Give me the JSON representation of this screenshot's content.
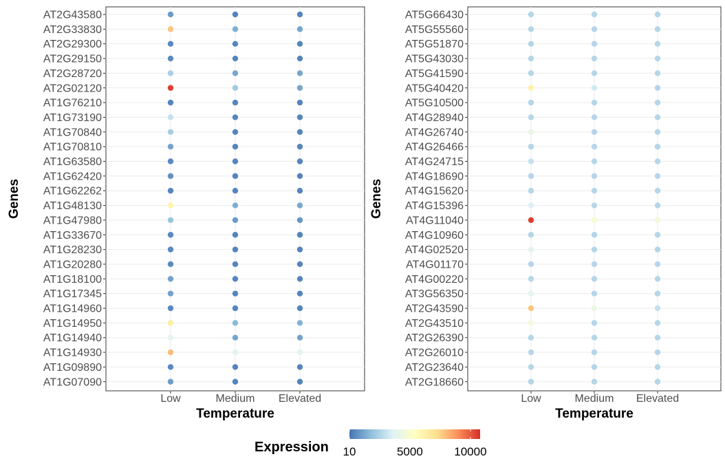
{
  "chart_data": [
    {
      "type": "scatter",
      "xlabel": "Temperature",
      "ylabel": "Genes",
      "x_categories": [
        "Low",
        "Medium",
        "Elevated"
      ],
      "genes": [
        "AT2G43580",
        "AT2G33830",
        "AT2G29300",
        "AT2G29150",
        "AT2G28720",
        "AT2G02120",
        "AT1G76210",
        "AT1G73190",
        "AT1G70840",
        "AT1G70810",
        "AT1G63580",
        "AT1G62420",
        "AT1G62262",
        "AT1G48130",
        "AT1G47980",
        "AT1G33670",
        "AT1G28230",
        "AT1G20280",
        "AT1G18100",
        "AT1G17345",
        "AT1G14960",
        "AT1G14950",
        "AT1G14940",
        "AT1G14930",
        "AT1G09890",
        "AT1G07090"
      ],
      "expression": {
        "Low": [
          900,
          7800,
          500,
          500,
          2400,
          10500,
          400,
          3000,
          2300,
          1100,
          500,
          700,
          400,
          6000,
          2000,
          500,
          500,
          500,
          1100,
          1100,
          500,
          6400,
          3800,
          8000,
          500,
          1000
        ],
        "Medium": [
          400,
          1400,
          400,
          400,
          1200,
          2200,
          400,
          400,
          400,
          400,
          400,
          400,
          400,
          1400,
          900,
          400,
          400,
          400,
          400,
          400,
          400,
          1700,
          1200,
          3700,
          400,
          400
        ],
        "Elevated": [
          400,
          1200,
          400,
          400,
          1200,
          1200,
          400,
          400,
          400,
          400,
          400,
          400,
          400,
          1200,
          800,
          400,
          400,
          400,
          400,
          400,
          400,
          1500,
          1100,
          3700,
          400,
          400
        ]
      },
      "grid": true
    },
    {
      "type": "scatter",
      "xlabel": "Temperature",
      "ylabel": "Genes",
      "x_categories": [
        "Low",
        "Medium",
        "Elevated"
      ],
      "genes": [
        "AT5G66430",
        "AT5G55560",
        "AT5G51870",
        "AT5G43030",
        "AT5G41590",
        "AT5G40420",
        "AT5G10500",
        "AT4G28940",
        "AT4G26740",
        "AT4G26466",
        "AT4G24715",
        "AT4G18690",
        "AT4G15620",
        "AT4G15396",
        "AT4G11040",
        "AT4G10960",
        "AT4G02520",
        "AT4G01170",
        "AT4G00220",
        "AT3G56350",
        "AT2G43590",
        "AT2G43510",
        "AT2G26390",
        "AT2G26010",
        "AT2G23640",
        "AT2G18660"
      ],
      "expression": {
        "Low": [
          2600,
          2600,
          2600,
          2600,
          2600,
          6200,
          2600,
          2600,
          4200,
          2600,
          3000,
          2600,
          2600,
          3500,
          10500,
          2600,
          3800,
          2600,
          2600,
          3800,
          7800,
          4600,
          2600,
          2600,
          2600,
          2600
        ],
        "Medium": [
          2600,
          2600,
          2600,
          2600,
          2600,
          3300,
          2600,
          2600,
          2600,
          2600,
          2600,
          2600,
          2600,
          2600,
          4800,
          2600,
          2600,
          2600,
          2600,
          2600,
          4200,
          2600,
          2600,
          2600,
          2600,
          2600
        ],
        "Elevated": [
          2600,
          2600,
          2600,
          2600,
          2600,
          2600,
          2600,
          2600,
          2600,
          2600,
          2600,
          2600,
          2600,
          2600,
          4600,
          2600,
          2600,
          2600,
          2600,
          2600,
          3000,
          2600,
          2600,
          2600,
          2600,
          2600
        ]
      },
      "grid": true
    }
  ],
  "legend": {
    "title": "Expression",
    "ticks": [
      {
        "value": 10,
        "label": "10"
      },
      {
        "value": 5000,
        "label": "5000"
      },
      {
        "value": 10000,
        "label": "10000"
      }
    ],
    "range": [
      10,
      10800
    ],
    "palette": [
      "#4575b4",
      "#91bfdb",
      "#e0f3f8",
      "#ffffbf",
      "#fee090",
      "#fc8d59",
      "#d73027"
    ]
  }
}
